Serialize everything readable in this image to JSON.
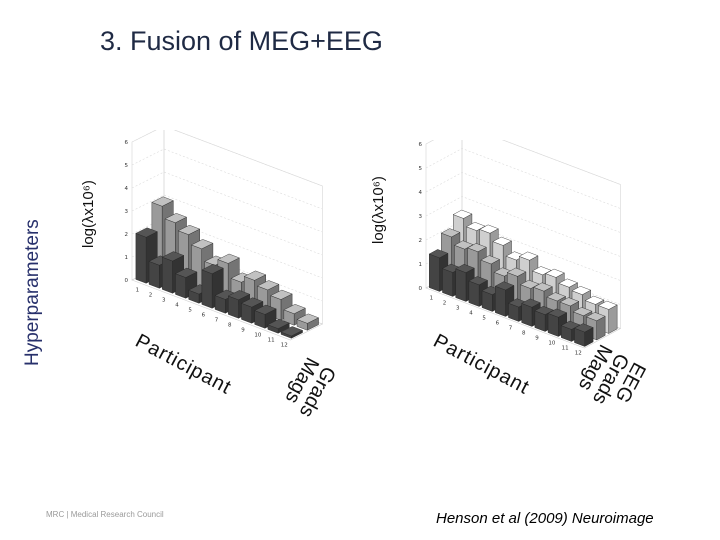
{
  "slide": {
    "title": "3. Fusion of MEG+EEG",
    "side_label": "Hyperparameters",
    "logo_text": "MRC | Medical Research Council",
    "citation": "Henson et al (2009) Neuroimage"
  },
  "chart_data": [
    {
      "type": "bar3d",
      "ylabel": "log(λx10⁶)",
      "xlabel": "Participant",
      "zlabel_lines": [
        "Grads",
        "Mags"
      ],
      "ylim": [
        0,
        6
      ],
      "yticks": [
        0,
        1,
        2,
        3,
        4,
        5,
        6
      ],
      "categories": [
        1,
        2,
        3,
        4,
        5,
        6,
        7,
        8,
        9,
        10,
        11,
        12
      ],
      "series": [
        {
          "name": "Mags",
          "color": "#444444",
          "values": [
            2.0,
            1.0,
            1.4,
            0.9,
            0.4,
            1.5,
            0.6,
            0.8,
            0.7,
            0.6,
            0.2,
            0.1
          ]
        },
        {
          "name": "Grads",
          "color": "#9a9a9a",
          "values": [
            3.0,
            2.5,
            2.2,
            1.8,
            1.3,
            1.6,
            1.0,
            1.3,
            1.1,
            0.9,
            0.5,
            0.3
          ]
        }
      ]
    },
    {
      "type": "bar3d",
      "ylabel": "log(λx10⁶)",
      "xlabel": "Participant",
      "zlabel_lines": [
        "EEG",
        "Grads",
        "Mags"
      ],
      "ylim": [
        0,
        6
      ],
      "yticks": [
        0,
        1,
        2,
        3,
        4,
        5,
        6
      ],
      "categories": [
        1,
        2,
        3,
        4,
        5,
        6,
        7,
        8,
        9,
        10,
        11,
        12
      ],
      "series": [
        {
          "name": "Mags",
          "color": "#444444",
          "values": [
            1.4,
            1.0,
            1.2,
            0.9,
            0.7,
            1.1,
            0.6,
            0.8,
            0.7,
            0.8,
            0.5,
            0.6
          ]
        },
        {
          "name": "Grads",
          "color": "#9a9a9a",
          "values": [
            2.0,
            1.7,
            1.8,
            1.5,
            1.2,
            1.4,
            1.1,
            1.2,
            1.0,
            1.0,
            0.8,
            0.8
          ]
        },
        {
          "name": "EEG",
          "color": "#cfcfcf",
          "values": [
            2.5,
            2.2,
            2.3,
            2.0,
            1.6,
            1.8,
            1.4,
            1.5,
            1.3,
            1.2,
            1.0,
            1.0
          ]
        }
      ]
    }
  ]
}
